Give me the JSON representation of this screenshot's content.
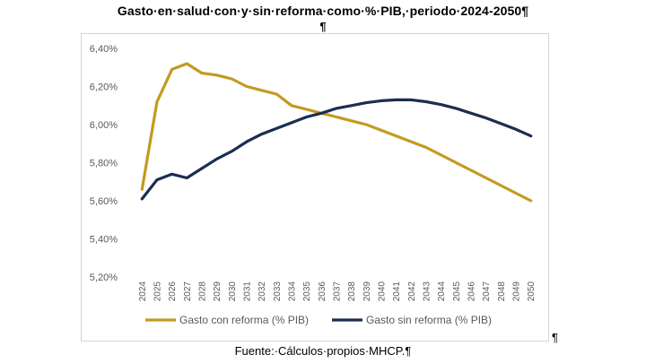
{
  "document": {
    "title": "Gasto·en·salud·con·y·sin·reforma·como·%·PIB,·periodo·2024-2050¶",
    "title_mark": "¶",
    "source": "Fuente:·Cálculos·propios·MHCP.¶",
    "trailing_mark": "¶"
  },
  "chart_data": {
    "type": "line",
    "title": "",
    "xlabel": "",
    "ylabel": "",
    "x": [
      "2024",
      "2025",
      "2026",
      "2027",
      "2028",
      "2029",
      "2030",
      "2031",
      "2032",
      "2033",
      "2034",
      "2035",
      "2036",
      "2037",
      "2038",
      "2039",
      "2040",
      "2041",
      "2042",
      "2043",
      "2044",
      "2045",
      "2046",
      "2047",
      "2048",
      "2049",
      "2050"
    ],
    "y_ticks": [
      "5,20%",
      "5,40%",
      "5,60%",
      "5,80%",
      "6,00%",
      "6,20%",
      "6,40%"
    ],
    "ylim": [
      5.2,
      6.4
    ],
    "grid": false,
    "legend": "bottom",
    "series": [
      {
        "name": "Gasto con reforma (% PIB)",
        "color": "#c49a1f",
        "values": [
          5.66,
          6.12,
          6.29,
          6.32,
          6.27,
          6.26,
          6.24,
          6.2,
          6.18,
          6.16,
          6.1,
          6.08,
          6.06,
          6.04,
          6.02,
          6.0,
          5.97,
          5.94,
          5.91,
          5.88,
          5.84,
          5.8,
          5.76,
          5.72,
          5.68,
          5.64,
          5.6
        ]
      },
      {
        "name": "Gasto sin reforma (% PIB)",
        "color": "#1b2d52",
        "values": [
          5.61,
          5.71,
          5.74,
          5.72,
          5.77,
          5.82,
          5.86,
          5.91,
          5.95,
          5.98,
          6.01,
          6.04,
          6.06,
          6.085,
          6.1,
          6.115,
          6.125,
          6.13,
          6.13,
          6.12,
          6.105,
          6.085,
          6.06,
          6.035,
          6.005,
          5.975,
          5.94
        ]
      }
    ]
  }
}
